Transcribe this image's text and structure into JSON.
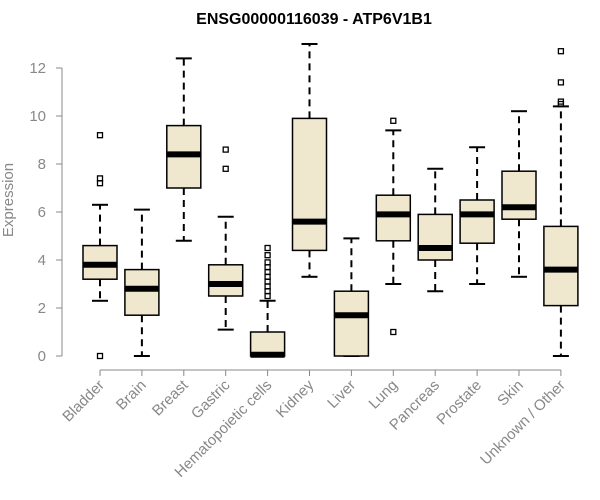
{
  "chart_data": {
    "type": "boxplot",
    "title": "ENSG00000116039 - ATP6V1B1",
    "ylabel": "Expression",
    "ylim": [
      0,
      13
    ],
    "yticks": [
      0,
      2,
      4,
      6,
      8,
      10,
      12
    ],
    "grid": false,
    "box_fill": "#efe8cf",
    "outline_color": "#000000",
    "axis_color": "#888888",
    "categories": [
      "Bladder",
      "Brain",
      "Breast",
      "Gastric",
      "Hematopoietic cells",
      "Kidney",
      "Liver",
      "Lung",
      "Pancreas",
      "Prostate",
      "Skin",
      "Unknown / Other"
    ],
    "boxes": [
      {
        "category": "Bladder",
        "whisker_low": 2.3,
        "q1": 3.2,
        "median": 3.8,
        "q3": 4.6,
        "whisker_high": 6.3,
        "outliers": [
          0.0,
          7.2,
          7.4,
          9.2
        ]
      },
      {
        "category": "Brain",
        "whisker_low": 0.0,
        "q1": 1.7,
        "median": 2.8,
        "q3": 3.6,
        "whisker_high": 6.1,
        "outliers": []
      },
      {
        "category": "Breast",
        "whisker_low": 4.8,
        "q1": 7.0,
        "median": 8.4,
        "q3": 9.6,
        "whisker_high": 12.4,
        "outliers": []
      },
      {
        "category": "Gastric",
        "whisker_low": 1.1,
        "q1": 2.5,
        "median": 3.0,
        "q3": 3.8,
        "whisker_high": 5.8,
        "outliers": [
          7.8,
          8.6
        ]
      },
      {
        "category": "Hematopoietic cells",
        "whisker_low": 0.0,
        "q1": 0.0,
        "median": 0.05,
        "q3": 1.0,
        "whisker_high": 2.3,
        "outliers": [
          2.5,
          2.7,
          2.9,
          3.1,
          3.3,
          3.5,
          3.7,
          3.9,
          4.2,
          4.5
        ]
      },
      {
        "category": "Kidney",
        "whisker_low": 3.3,
        "q1": 4.4,
        "median": 5.6,
        "q3": 9.9,
        "whisker_high": 13.0,
        "outliers": []
      },
      {
        "category": "Liver",
        "whisker_low": 0.0,
        "q1": 0.0,
        "median": 1.7,
        "q3": 2.7,
        "whisker_high": 4.9,
        "outliers": []
      },
      {
        "category": "Lung",
        "whisker_low": 3.0,
        "q1": 4.8,
        "median": 5.9,
        "q3": 6.7,
        "whisker_high": 9.4,
        "outliers": [
          1.0,
          9.8
        ]
      },
      {
        "category": "Pancreas",
        "whisker_low": 2.7,
        "q1": 4.0,
        "median": 4.5,
        "q3": 5.9,
        "whisker_high": 7.8,
        "outliers": []
      },
      {
        "category": "Prostate",
        "whisker_low": 3.0,
        "q1": 4.7,
        "median": 5.9,
        "q3": 6.5,
        "whisker_high": 8.7,
        "outliers": []
      },
      {
        "category": "Skin",
        "whisker_low": 3.3,
        "q1": 5.7,
        "median": 6.2,
        "q3": 7.7,
        "whisker_high": 10.2,
        "outliers": []
      },
      {
        "category": "Unknown / Other",
        "whisker_low": 0.0,
        "q1": 2.1,
        "median": 3.6,
        "q3": 5.4,
        "whisker_high": 10.4,
        "outliers": [
          10.5,
          10.6,
          11.4,
          12.7
        ]
      }
    ]
  }
}
